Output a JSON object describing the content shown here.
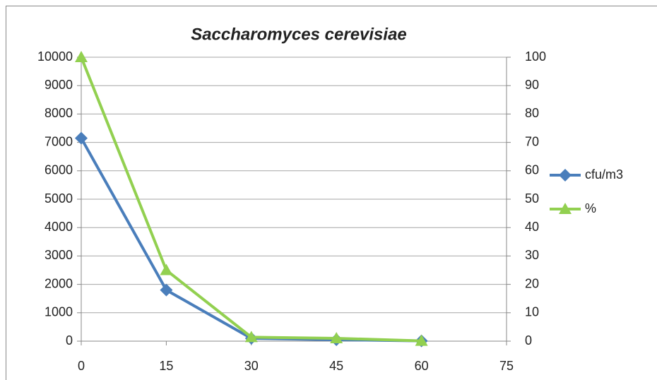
{
  "chart_data": {
    "type": "line",
    "title": "Saccharomyces cerevisiae",
    "x": [
      0,
      15,
      30,
      45,
      60
    ],
    "series": [
      {
        "name": "cfu/m3",
        "color": "#4a7ebb",
        "marker": "diamond",
        "values": [
          7150,
          1800,
          100,
          50,
          10
        ]
      },
      {
        "name": "%",
        "color": "#92d050",
        "marker": "triangle",
        "axis": "y2",
        "values": [
          100,
          25,
          1.4,
          1,
          0.1
        ]
      }
    ],
    "xlim": [
      0,
      75
    ],
    "xticks": [
      0,
      15,
      30,
      45,
      60,
      75
    ],
    "ylim": [
      0,
      10000
    ],
    "yticks": [
      0,
      1000,
      2000,
      3000,
      4000,
      5000,
      6000,
      7000,
      8000,
      9000,
      10000
    ],
    "y2lim": [
      0,
      100
    ],
    "y2ticks": [
      0,
      10,
      20,
      30,
      40,
      50,
      60,
      70,
      80,
      90,
      100
    ],
    "grid": true,
    "legend": "right"
  }
}
